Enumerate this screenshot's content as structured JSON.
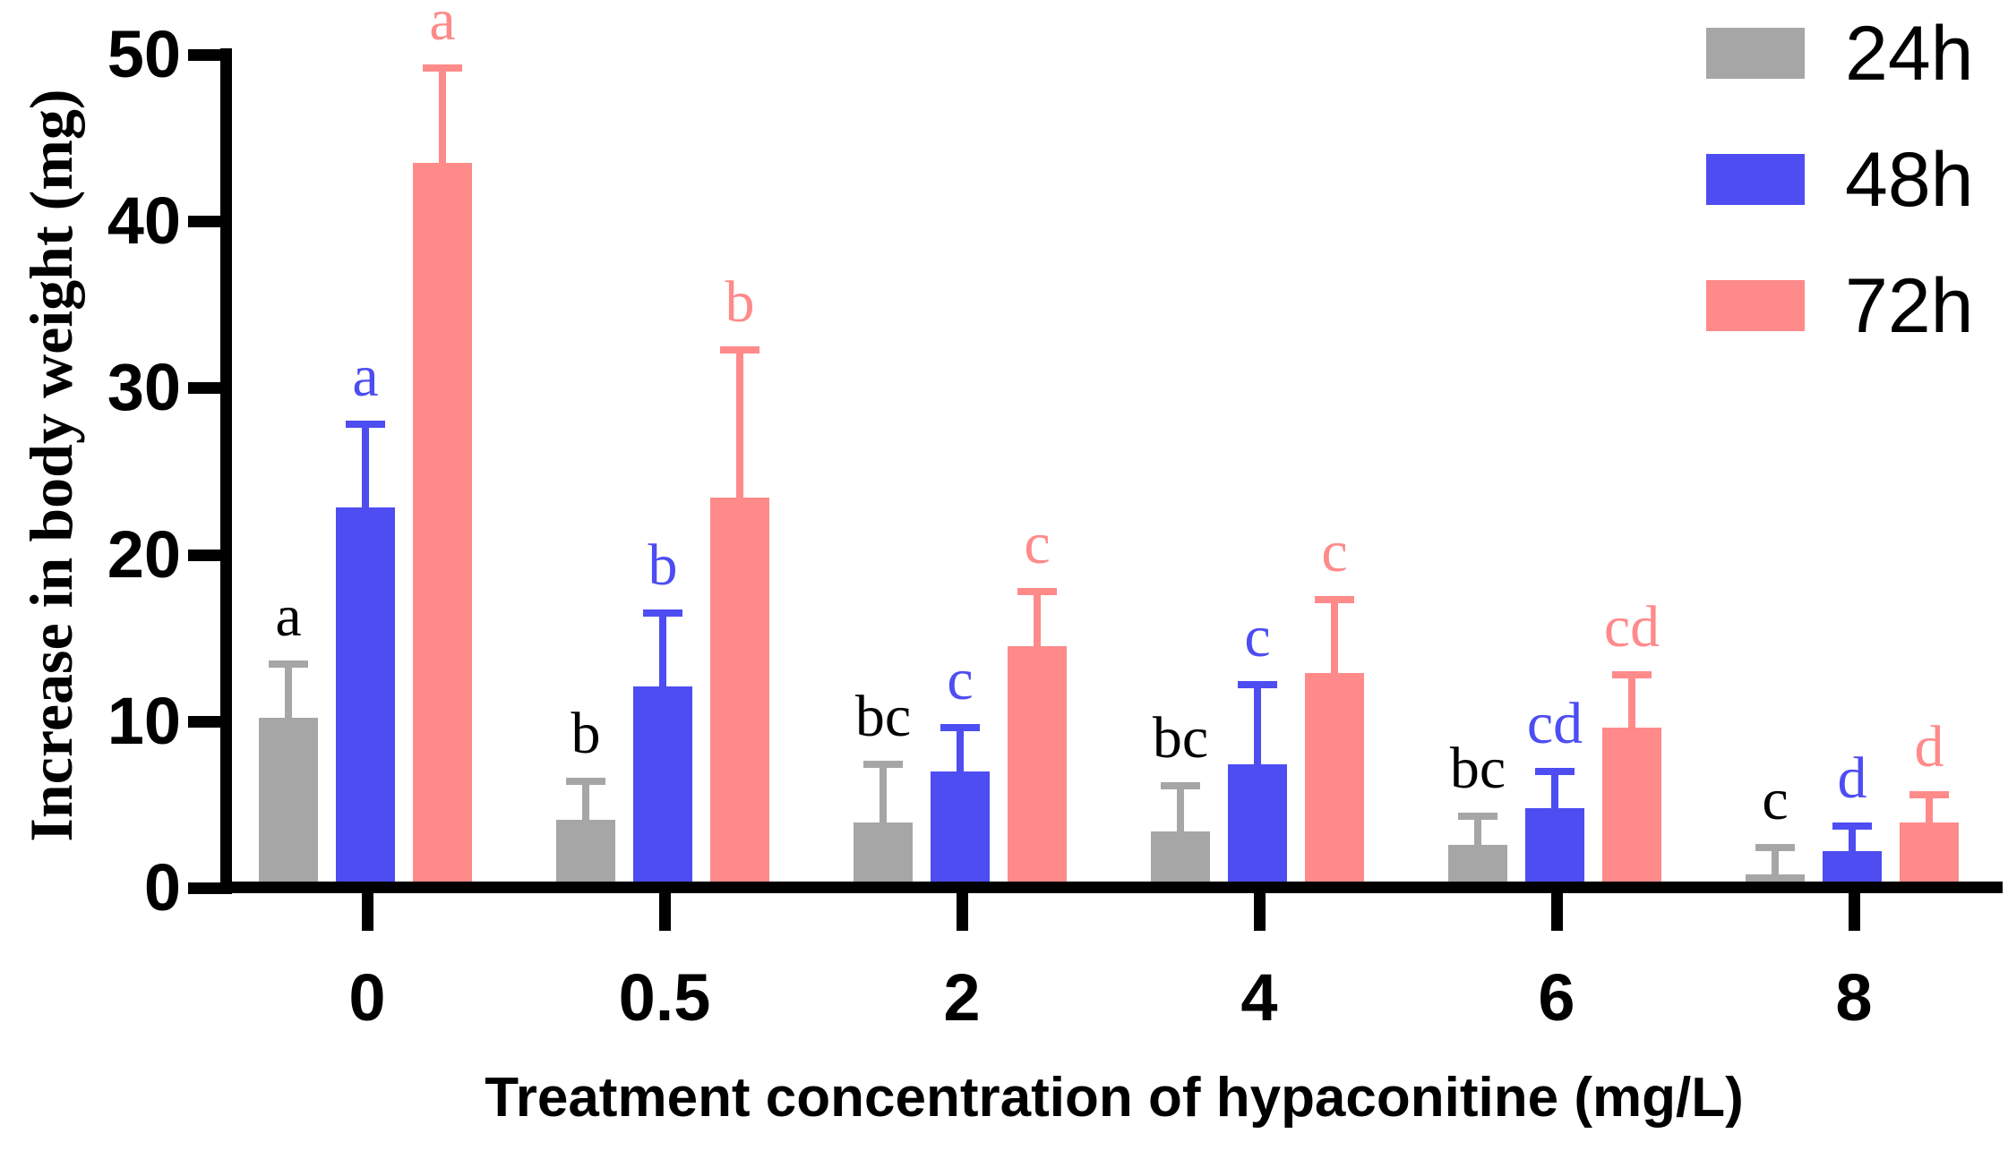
{
  "figure": {
    "y_axis": {
      "title": "Increase in body weight (mg)",
      "tick_labels": [
        "0",
        "10",
        "20",
        "30",
        "40",
        "50"
      ]
    },
    "x_axis": {
      "title": "Treatment concentration of hypaconitine (mg/L)",
      "categories": [
        "0",
        "0.5",
        "2",
        "4",
        "6",
        "8"
      ]
    },
    "legend": [
      {
        "label": "24h",
        "color": "#A6A6A6"
      },
      {
        "label": "48h",
        "color": "#4D4DF2"
      },
      {
        "label": "72h",
        "color": "#FF8A8A"
      }
    ]
  },
  "chart_data": {
    "type": "bar",
    "title": "",
    "xlabel": "Treatment concentration of hypaconitine (mg/L)",
    "ylabel": "Increase in body weight (mg)",
    "ylim": [
      0,
      50
    ],
    "yticks": [
      0,
      10,
      20,
      30,
      40,
      50
    ],
    "grid": false,
    "legend_position": "top-right",
    "error_bars": "upper-only, SD",
    "categories": [
      "0",
      "0.5",
      "2",
      "4",
      "6",
      "8"
    ],
    "series": [
      {
        "name": "24h",
        "color": "#A6A6A6",
        "letter_color": "#000000",
        "values": [
          10.2,
          4.1,
          3.9,
          3.4,
          2.6,
          0.8
        ],
        "errors": [
          3.2,
          2.3,
          3.5,
          2.7,
          1.7,
          1.6
        ],
        "sig_letters": [
          "a",
          "b",
          "bc",
          "bc",
          "bc",
          "c"
        ]
      },
      {
        "name": "48h",
        "color": "#4D4DF2",
        "letter_color": "#4D4DF2",
        "values": [
          22.8,
          12.1,
          7.0,
          7.4,
          4.8,
          2.2
        ],
        "errors": [
          5.0,
          4.4,
          2.6,
          4.8,
          2.2,
          1.5
        ],
        "sig_letters": [
          "a",
          "b",
          "c",
          "c",
          "cd",
          "d"
        ]
      },
      {
        "name": "72h",
        "color": "#FF8A8A",
        "letter_color": "#FF8A8A",
        "values": [
          43.5,
          23.4,
          14.5,
          12.9,
          9.6,
          3.9
        ],
        "errors": [
          5.7,
          8.9,
          3.3,
          4.4,
          3.2,
          1.7
        ],
        "sig_letters": [
          "a",
          "b",
          "c",
          "c",
          "cd",
          "d"
        ]
      }
    ]
  }
}
